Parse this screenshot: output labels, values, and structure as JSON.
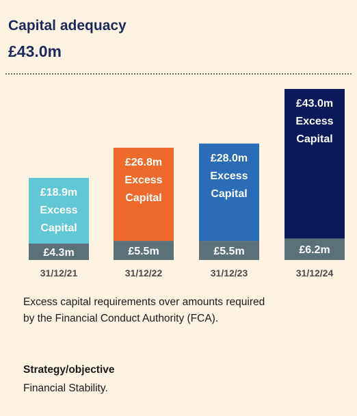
{
  "header": {
    "title": "Capital adequacy",
    "value": "£43.0m"
  },
  "chart_data": {
    "type": "bar",
    "stacked": true,
    "categories": [
      "31/12/21",
      "31/12/22",
      "31/12/23",
      "31/12/24"
    ],
    "series": [
      {
        "values": [
          4.3,
          5.5,
          5.5,
          6.2
        ],
        "labels": [
          "£4.3m",
          "£5.5m",
          "£5.5m",
          "£6.2m"
        ],
        "colors": [
          "#5c7078",
          "#5c7078",
          "#5c7078",
          "#5c7078"
        ]
      },
      {
        "values": [
          18.9,
          26.8,
          28.0,
          43.0
        ],
        "labels": [
          "£18.9m",
          "£26.8m",
          "£28.0m",
          "£43.0m"
        ],
        "sublabel": [
          "Excess",
          "Capital"
        ],
        "colors": [
          "#62c7d4",
          "#ee6a2c",
          "#2a6db6",
          "#0c1a5c"
        ]
      }
    ],
    "gridlines": false,
    "legend": "none"
  },
  "description": {
    "line1": "Excess capital requirements over amounts required",
    "line2": "by the Financial Conduct Authority (FCA)."
  },
  "strategy": {
    "title": "Strategy/objective",
    "text": "Financial Stability."
  }
}
